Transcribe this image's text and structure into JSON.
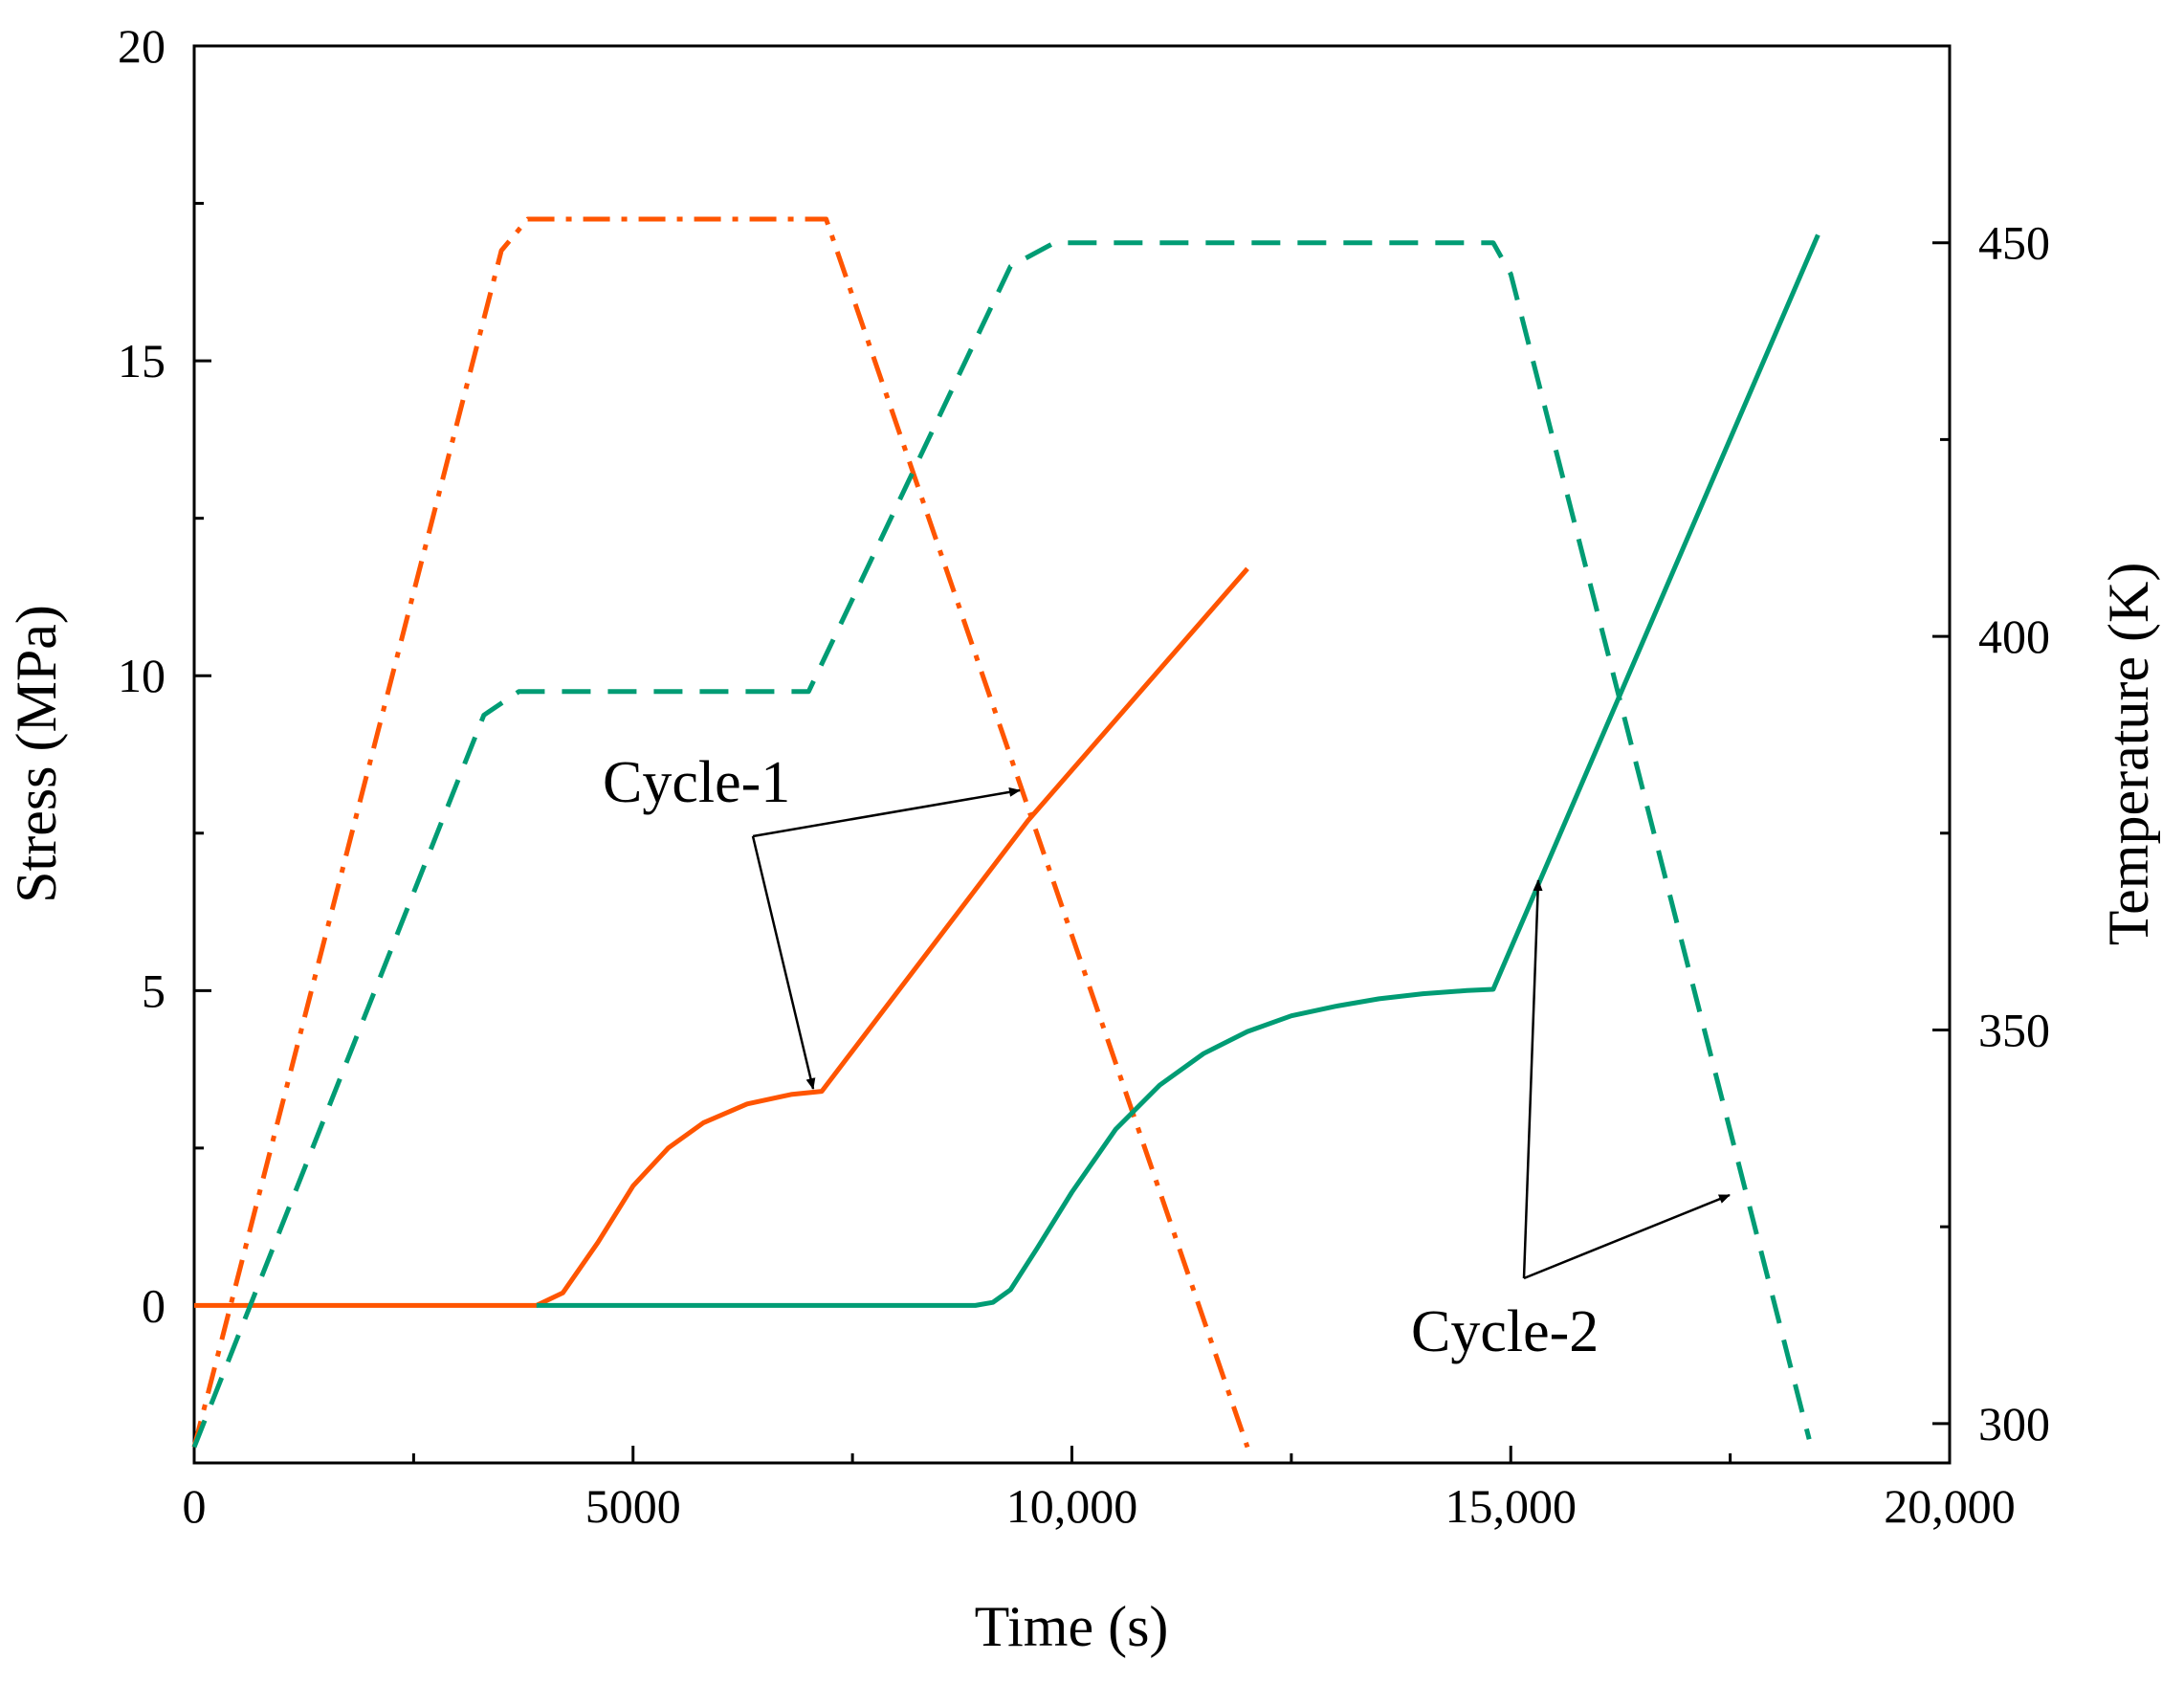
{
  "chart_data": {
    "type": "line",
    "title": "",
    "xlabel": "Time (s)",
    "ylabel": "Stress (MPa)",
    "y2label": "Temperature (K)",
    "xlim": [
      0,
      20000
    ],
    "ylim": [
      -2.5,
      20
    ],
    "y2lim": [
      295,
      475
    ],
    "xticks": [
      0,
      5000,
      10000,
      15000,
      20000
    ],
    "xtick_labels": [
      "0",
      "5000",
      "10,000",
      "15,000",
      "20,000"
    ],
    "yticks": [
      0,
      5,
      10,
      15,
      20
    ],
    "ytick_labels": [
      "0",
      "5",
      "10",
      "15",
      "20"
    ],
    "y2ticks": [
      300,
      350,
      400,
      450
    ],
    "y2tick_labels": [
      "300",
      "350",
      "400",
      "450"
    ],
    "grid": false,
    "series": [
      {
        "name": "Cycle-1 stress",
        "axis": "left",
        "style": "solid",
        "color": "#FF5500",
        "x": [
          0,
          3900,
          4200,
          4600,
          5000,
          5400,
          5800,
          6300,
          6800,
          7150,
          9500,
          12000
        ],
        "y": [
          0,
          0,
          0.2,
          1.0,
          1.9,
          2.5,
          2.9,
          3.2,
          3.35,
          3.4,
          7.7,
          11.7
        ]
      },
      {
        "name": "Cycle-1 temperature",
        "axis": "right",
        "style": "dash-dot",
        "color": "#FF5500",
        "x": [
          0,
          3500,
          3800,
          7200,
          12000
        ],
        "y": [
          297,
          449,
          453,
          453,
          297
        ]
      },
      {
        "name": "Cycle-2 stress",
        "axis": "left",
        "style": "solid",
        "color": "#009C74",
        "x": [
          3900,
          8900,
          9100,
          9300,
          9600,
          10000,
          10500,
          11000,
          11500,
          12000,
          12500,
          13000,
          13500,
          14000,
          14500,
          14800,
          18500
        ],
        "y": [
          0,
          0,
          0.05,
          0.25,
          0.9,
          1.8,
          2.8,
          3.5,
          4.0,
          4.35,
          4.6,
          4.75,
          4.87,
          4.95,
          5.0,
          5.02,
          17.0
        ]
      },
      {
        "name": "Cycle-2 temperature",
        "axis": "right",
        "style": "dashed",
        "color": "#009C74",
        "x": [
          0,
          3300,
          3700,
          7000,
          9300,
          9800,
          14800,
          15000,
          18400
        ],
        "y": [
          297,
          390,
          393,
          393,
          447,
          450,
          450,
          446,
          298
        ]
      }
    ],
    "annotations": [
      {
        "text": "Cycle-1",
        "color": "#000000"
      },
      {
        "text": "Cycle-2",
        "color": "#000000"
      }
    ]
  }
}
